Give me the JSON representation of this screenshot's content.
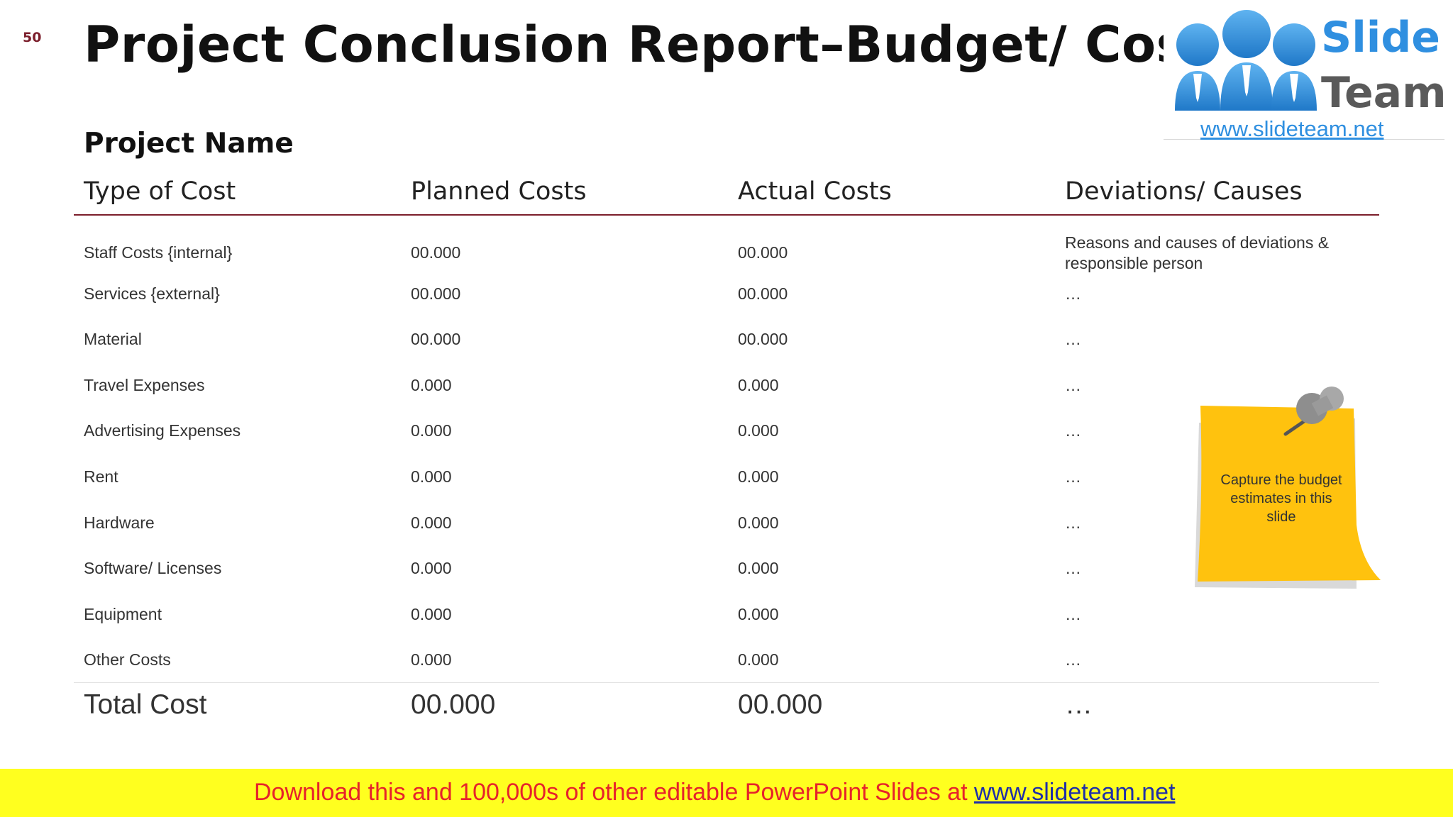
{
  "slide_number": "50",
  "title": "Project Conclusion Report–Budget/ Cost",
  "project_name": "Project Name",
  "table": {
    "headers": [
      "Type of Cost",
      "Planned Costs",
      "Actual Costs",
      "Deviations/ Causes"
    ],
    "rows": [
      [
        "Staff Costs {internal}",
        "00.000",
        "00.000",
        "Reasons and causes of deviations & responsible person"
      ],
      [
        "Services {external}",
        "00.000",
        "00.000",
        "…"
      ],
      [
        "Material",
        "00.000",
        "00.000",
        "…"
      ],
      [
        "Travel Expenses",
        "0.000",
        "0.000",
        "…"
      ],
      [
        "Advertising Expenses",
        "0.000",
        "0.000",
        "…"
      ],
      [
        "Rent",
        "0.000",
        "0.000",
        "…"
      ],
      [
        "Hardware",
        "0.000",
        "0.000",
        "…"
      ],
      [
        "Software/ Licenses",
        "0.000",
        "0.000",
        "…"
      ],
      [
        "Equipment",
        "0.000",
        "0.000",
        "…"
      ],
      [
        "Other Costs",
        "0.000",
        "0.000",
        "…"
      ]
    ],
    "total": [
      "Total Cost",
      "00.000",
      "00.000",
      "…"
    ]
  },
  "sticky_note": {
    "text": "Capture the budget estimates in this slide"
  },
  "logo": {
    "word1": "Slide",
    "word2": "Team",
    "url": "www.slideteam.net"
  },
  "banner": {
    "text": "Download this and 100,000s of other editable PowerPoint Slides at ",
    "link": "www.slideteam.net"
  },
  "colors": {
    "accent": "#7b1e2b",
    "banner_bg": "#ffff1f",
    "banner_text": "#e6222b",
    "note": "#ffc20e",
    "logo_blue": "#2f8fe0"
  }
}
